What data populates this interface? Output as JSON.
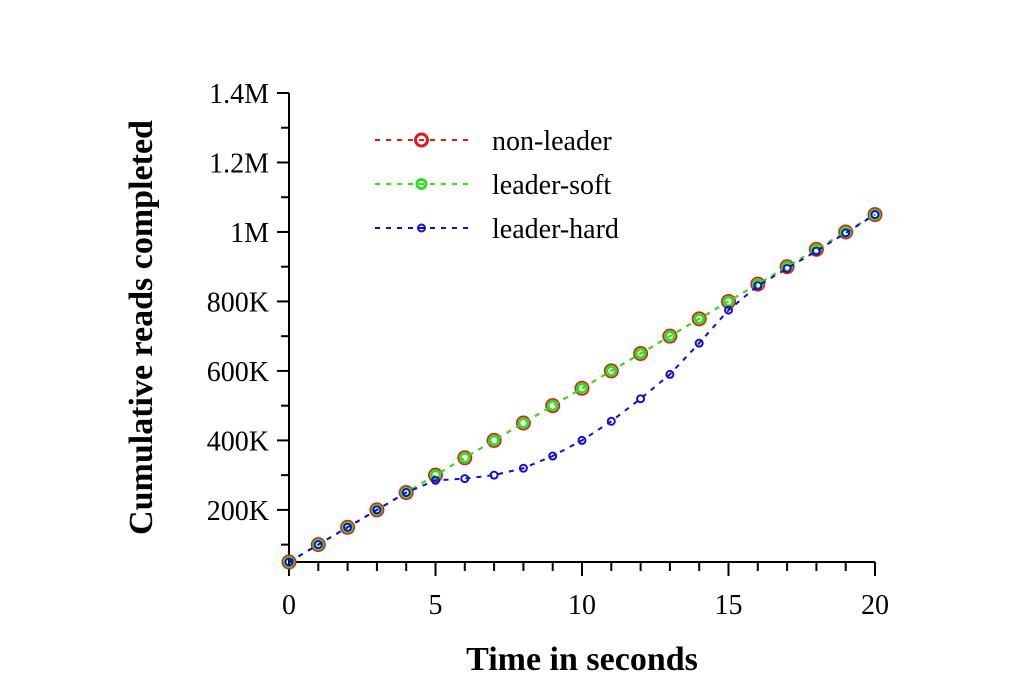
{
  "chart_data": {
    "type": "line",
    "title": "",
    "xlabel": "Time in seconds",
    "ylabel": "Cumulative reads completed",
    "xlim": [
      0,
      20
    ],
    "ylim": [
      50000,
      1400000
    ],
    "x_ticks": [
      0,
      5,
      10,
      15,
      20
    ],
    "x_tick_labels": [
      "0",
      "5",
      "10",
      "15",
      "20"
    ],
    "y_ticks": [
      200000,
      400000,
      600000,
      800000,
      1000000,
      1200000,
      1400000
    ],
    "y_tick_labels": [
      "200K",
      "400K",
      "600K",
      "800K",
      "1M",
      "1.2M",
      "1.4M"
    ],
    "grid": false,
    "legend_position": "top-left",
    "x": [
      0,
      1,
      2,
      3,
      4,
      5,
      6,
      7,
      8,
      9,
      10,
      11,
      12,
      13,
      14,
      15,
      16,
      17,
      18,
      19,
      20
    ],
    "series": [
      {
        "name": "non-leader",
        "color": "#e31a1c",
        "marker_size": "large",
        "values": [
          50000,
          100000,
          150000,
          200000,
          250000,
          300000,
          350000,
          400000,
          450000,
          500000,
          550000,
          600000,
          650000,
          700000,
          750000,
          800000,
          850000,
          900000,
          950000,
          1000000,
          1050000
        ]
      },
      {
        "name": "leader-soft",
        "color": "#33dd22",
        "marker_size": "medium",
        "values": [
          50000,
          100000,
          150000,
          200000,
          250000,
          300000,
          350000,
          400000,
          450000,
          500000,
          550000,
          600000,
          650000,
          700000,
          750000,
          800000,
          850000,
          900000,
          950000,
          1000000,
          1050000
        ]
      },
      {
        "name": "leader-hard",
        "color": "#1111cc",
        "marker_size": "small",
        "values": [
          50000,
          100000,
          150000,
          200000,
          250000,
          285000,
          290000,
          300000,
          320000,
          355000,
          400000,
          455000,
          520000,
          590000,
          680000,
          775000,
          845000,
          895000,
          945000,
          997000,
          1050000
        ]
      }
    ]
  }
}
